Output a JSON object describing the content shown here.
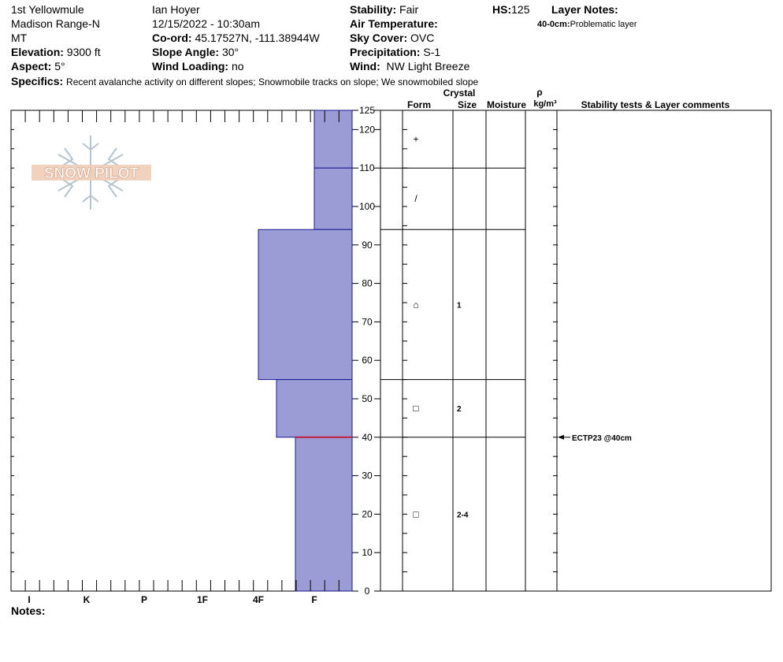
{
  "header": {
    "site": "1st Yellowmule",
    "range": "Madison Range-N",
    "state": "MT",
    "elevation_label": "Elevation:",
    "elevation_value": "9300 ft",
    "aspect_label": "Aspect:",
    "aspect_value": "5°",
    "observer": "Ian Hoyer",
    "datetime": "12/15/2022 - 10:30am",
    "coord_label": "Co-ord:",
    "coord_value": "45.17527N, -111.38944W",
    "slope_label": "Slope Angle:",
    "slope_value": "30°",
    "wind_loading_label": "Wind Loading:",
    "wind_loading_value": "no",
    "stability_label": "Stability:",
    "stability_value": "Fair",
    "air_temp_label": "Air Temperature:",
    "sky_label": "Sky Cover:",
    "sky_value": "OVC",
    "precip_label": "Precipitation:",
    "precip_value": "S-1",
    "wind_label": "Wind:",
    "wind_value": "NW Light Breeze",
    "hs_label": "HS:",
    "hs_value": "125",
    "layer_notes_label": "Layer Notes:",
    "layer_note_range": "40-0cm:",
    "layer_note_text": "Problematic layer",
    "specifics_label": "Specifics:",
    "specifics_value": "Recent avalanche activity on different slopes; Snowmobile tracks on slope; We snowmobiled slope",
    "notes_label": "Notes:"
  },
  "logo": {
    "text": "SNOW PILOT"
  },
  "colors": {
    "bar_fill": "#9b9bd6",
    "bar_stroke": "#1a1a8c",
    "weak_layer": "#c0203a"
  },
  "chart_data": {
    "type": "bar",
    "orientation": "horizontal",
    "hardness_categories": [
      "I",
      "K",
      "P",
      "1F",
      "4F",
      "F"
    ],
    "y_axis": {
      "ylim": [
        0,
        125
      ],
      "ticks": [
        0,
        10,
        20,
        30,
        40,
        50,
        60,
        70,
        80,
        90,
        100,
        110,
        120,
        125
      ]
    },
    "layers": [
      {
        "top": 125,
        "bottom": 110,
        "hardness": "F"
      },
      {
        "top": 110,
        "bottom": 94,
        "hardness": "F"
      },
      {
        "top": 94,
        "bottom": 55,
        "hardness": "4F"
      },
      {
        "top": 55,
        "bottom": 40,
        "hardness": "4F-"
      },
      {
        "top": 40,
        "bottom": 0,
        "hardness": "F+"
      }
    ],
    "weak_layer_depth": 40
  },
  "table": {
    "headers": {
      "crystal": "Crystal",
      "form": "Form",
      "size": "Size",
      "moisture": "Moisture",
      "rho": "ρ",
      "density_unit": "kg/m³",
      "stability": "Stability tests & Layer comments"
    },
    "boundaries": [
      125,
      110,
      94,
      55,
      40
    ],
    "rows": [
      {
        "mid": 117.5,
        "form": "+",
        "size": ""
      },
      {
        "mid": 102,
        "form": "/",
        "size": ""
      },
      {
        "mid": 74.5,
        "form": "⌂",
        "size": "1"
      },
      {
        "mid": 47.5,
        "form": "□",
        "size": "2"
      },
      {
        "mid": 20,
        "form": "□",
        "size": "2-4"
      }
    ],
    "test": {
      "depth": 40,
      "label": "ECTP23 @40cm"
    }
  }
}
